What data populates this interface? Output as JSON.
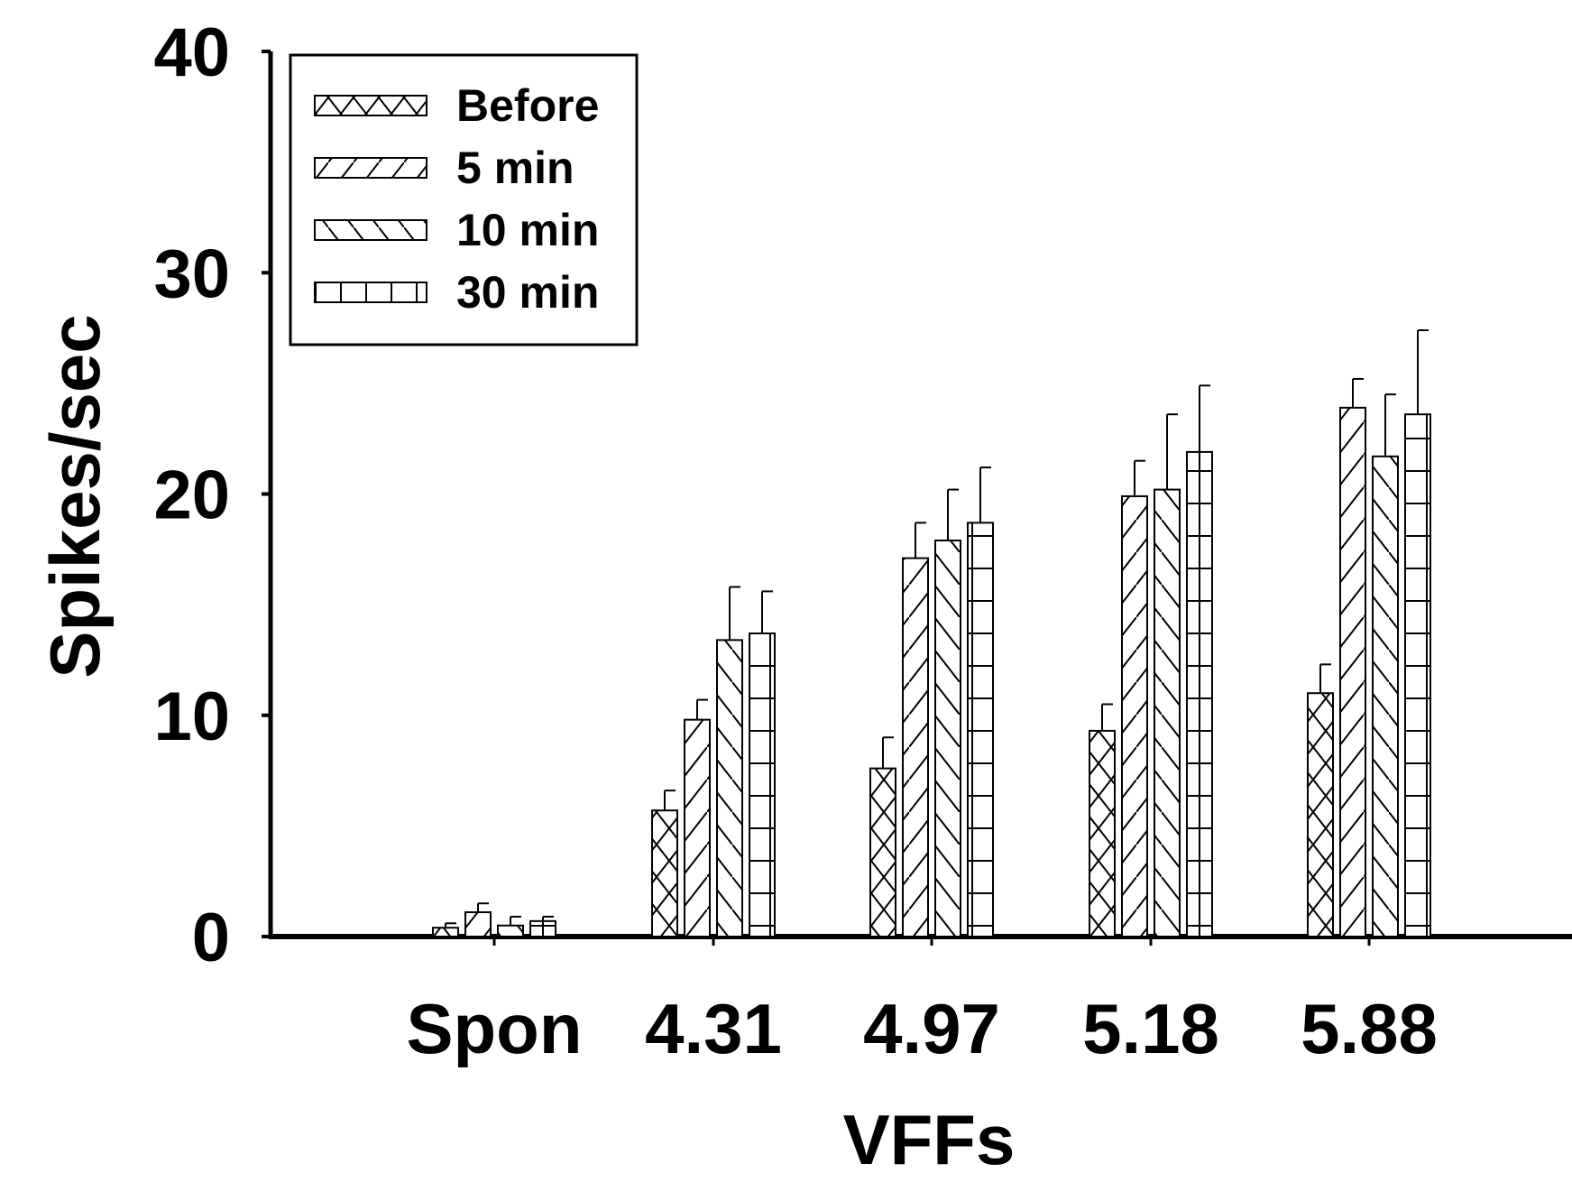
{
  "chart_data": {
    "type": "bar",
    "title": "",
    "xlabel": "VFFs",
    "ylabel": "Spikes/sec",
    "ylim": [
      0,
      40
    ],
    "yticks": [
      0,
      10,
      20,
      30,
      40
    ],
    "grid": false,
    "legend_position": "top-left",
    "categories": [
      "Spon",
      "4.31",
      "4.97",
      "5.18",
      "5.88"
    ],
    "series": [
      {
        "name": "Before",
        "pattern": "crosshatch",
        "values": [
          0.4,
          5.7,
          7.6,
          9.3,
          11.0
        ],
        "errors": [
          0.2,
          0.9,
          1.4,
          1.2,
          1.3
        ]
      },
      {
        "name": "5 min",
        "pattern": "forward-diagonal",
        "values": [
          1.1,
          9.8,
          17.1,
          19.9,
          23.9
        ],
        "errors": [
          0.4,
          0.9,
          1.6,
          1.6,
          1.3
        ]
      },
      {
        "name": "10 min",
        "pattern": "backward-diagonal",
        "values": [
          0.5,
          13.4,
          17.9,
          20.2,
          21.7
        ],
        "errors": [
          0.4,
          2.4,
          2.3,
          3.4,
          2.8
        ]
      },
      {
        "name": "30 min",
        "pattern": "grid",
        "values": [
          0.7,
          13.7,
          18.7,
          21.9,
          23.6
        ],
        "errors": [
          0.2,
          1.9,
          2.5,
          3.0,
          3.8
        ]
      }
    ]
  }
}
